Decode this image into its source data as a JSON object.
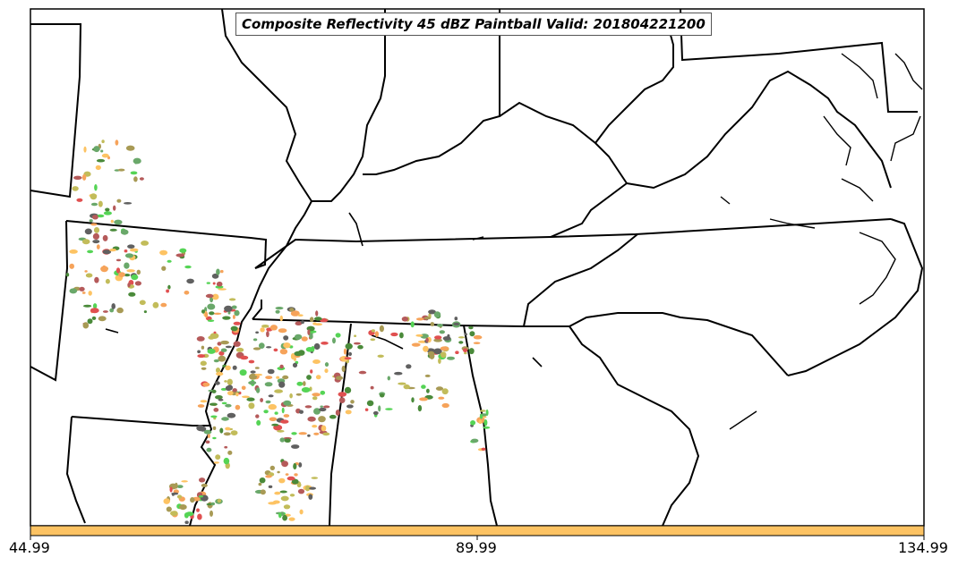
{
  "map": {
    "title": "Composite Reflectivity 45 dBZ Paintball Valid: 201804221200",
    "colorbar": {
      "ticks": [
        "44.99",
        "89.99",
        "134.99"
      ],
      "fill_color": "#fdc363"
    },
    "palette": {
      "orange": "#f6a35a",
      "light_orange": "#fdc363",
      "green": "#55d455",
      "dark_green": "#4a8a3a",
      "olive": "#a89a55",
      "yellow_olive": "#c2bc5a",
      "red": "#e05050",
      "brown": "#b55a5a",
      "gray": "#606060",
      "sage": "#6aa86a"
    }
  }
}
